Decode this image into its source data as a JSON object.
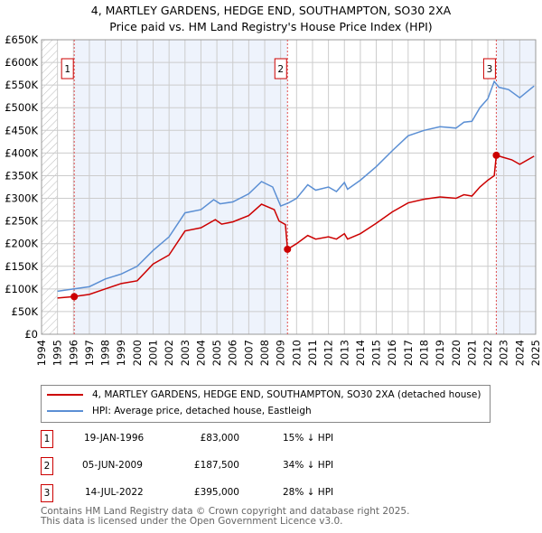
{
  "title": "4, MARTLEY GARDENS, HEDGE END, SOUTHAMPTON, SO30 2XA",
  "subtitle": "Price paid vs. HM Land Registry's House Price Index (HPI)",
  "chart_data": {
    "type": "line",
    "xlim": [
      1994,
      2025
    ],
    "ylim": [
      0,
      650000
    ],
    "x_ticks": [
      "1994",
      "1995",
      "1996",
      "1997",
      "1998",
      "1999",
      "2000",
      "2001",
      "2002",
      "2003",
      "2004",
      "2005",
      "2006",
      "2007",
      "2008",
      "2009",
      "2010",
      "2011",
      "2012",
      "2013",
      "2014",
      "2015",
      "2016",
      "2017",
      "2018",
      "2019",
      "2020",
      "2021",
      "2022",
      "2023",
      "2024",
      "2025"
    ],
    "y_ticks": [
      {
        "v": 0,
        "l": "£0"
      },
      {
        "v": 50000,
        "l": "£50K"
      },
      {
        "v": 100000,
        "l": "£100K"
      },
      {
        "v": 150000,
        "l": "£150K"
      },
      {
        "v": 200000,
        "l": "£200K"
      },
      {
        "v": 250000,
        "l": "£250K"
      },
      {
        "v": 300000,
        "l": "£300K"
      },
      {
        "v": 350000,
        "l": "£350K"
      },
      {
        "v": 400000,
        "l": "£400K"
      },
      {
        "v": 450000,
        "l": "£450K"
      },
      {
        "v": 500000,
        "l": "£500K"
      },
      {
        "v": 550000,
        "l": "£550K"
      },
      {
        "v": 600000,
        "l": "£600K"
      },
      {
        "v": 650000,
        "l": "£650K"
      }
    ],
    "series": [
      {
        "name": "4, MARTLEY GARDENS, HEDGE END, SOUTHAMPTON, SO30 2XA (detached house)",
        "color": "#cc0000",
        "x": [
          1995,
          1996,
          1997,
          1998,
          1999,
          2000,
          2001,
          2002,
          2003,
          2004,
          2004.9,
          2005.3,
          2006,
          2007,
          2007.8,
          2008.6,
          2008.9,
          2009.3,
          2009.43,
          2010,
          2010.7,
          2011.2,
          2012,
          2012.5,
          2013,
          2013.2,
          2014,
          2015,
          2016,
          2017,
          2018,
          2019,
          2020,
          2020.5,
          2021,
          2021.5,
          2022,
          2022.4,
          2022.53,
          2023,
          2023.5,
          2024,
          2024.9
        ],
        "y": [
          80000,
          83000,
          88000,
          100000,
          112000,
          118000,
          155000,
          175000,
          228000,
          235000,
          253000,
          243000,
          248000,
          262000,
          287000,
          275000,
          250000,
          242000,
          187500,
          200000,
          218000,
          210000,
          215000,
          210000,
          222000,
          210000,
          222000,
          245000,
          270000,
          290000,
          298000,
          303000,
          300000,
          308000,
          305000,
          325000,
          340000,
          350000,
          395000,
          390000,
          385000,
          375000,
          393000
        ]
      },
      {
        "name": "HPI: Average price, detached house, Eastleigh",
        "color": "#5b8fd4",
        "x": [
          1995,
          1996,
          1997,
          1998,
          1999,
          2000,
          2001,
          2002,
          2003,
          2004,
          2004.8,
          2005.2,
          2006,
          2007,
          2007.8,
          2008.5,
          2009,
          2009.5,
          2010,
          2010.7,
          2011.2,
          2012,
          2012.5,
          2013,
          2013.2,
          2014,
          2015,
          2016,
          2017,
          2018,
          2019,
          2020,
          2020.5,
          2021,
          2021.5,
          2022,
          2022.4,
          2022.7,
          2023.3,
          2024,
          2024.9
        ],
        "y": [
          95000,
          100000,
          105000,
          122000,
          133000,
          150000,
          185000,
          215000,
          268000,
          275000,
          297000,
          288000,
          292000,
          310000,
          337000,
          325000,
          283000,
          290000,
          300000,
          330000,
          318000,
          325000,
          315000,
          335000,
          320000,
          340000,
          370000,
          405000,
          438000,
          450000,
          458000,
          455000,
          468000,
          470000,
          500000,
          520000,
          558000,
          545000,
          540000,
          522000,
          548000
        ]
      }
    ],
    "sales": [
      {
        "n": "1",
        "x": 1996.05,
        "date": "19-JAN-1996",
        "price_num": 83000,
        "price": "£83,000",
        "hpi": "15% ↓ HPI"
      },
      {
        "n": "2",
        "x": 2009.43,
        "date": "05-JUN-2009",
        "price_num": 187500,
        "price": "£187,500",
        "hpi": "34% ↓ HPI"
      },
      {
        "n": "3",
        "x": 2022.53,
        "date": "14-JUL-2022",
        "price_num": 395000,
        "price": "£395,000",
        "hpi": "28% ↓ HPI"
      }
    ]
  },
  "footer": [
    "Contains HM Land Registry data © Crown copyright and database right 2025.",
    "This data is licensed under the Open Government Licence v3.0."
  ]
}
